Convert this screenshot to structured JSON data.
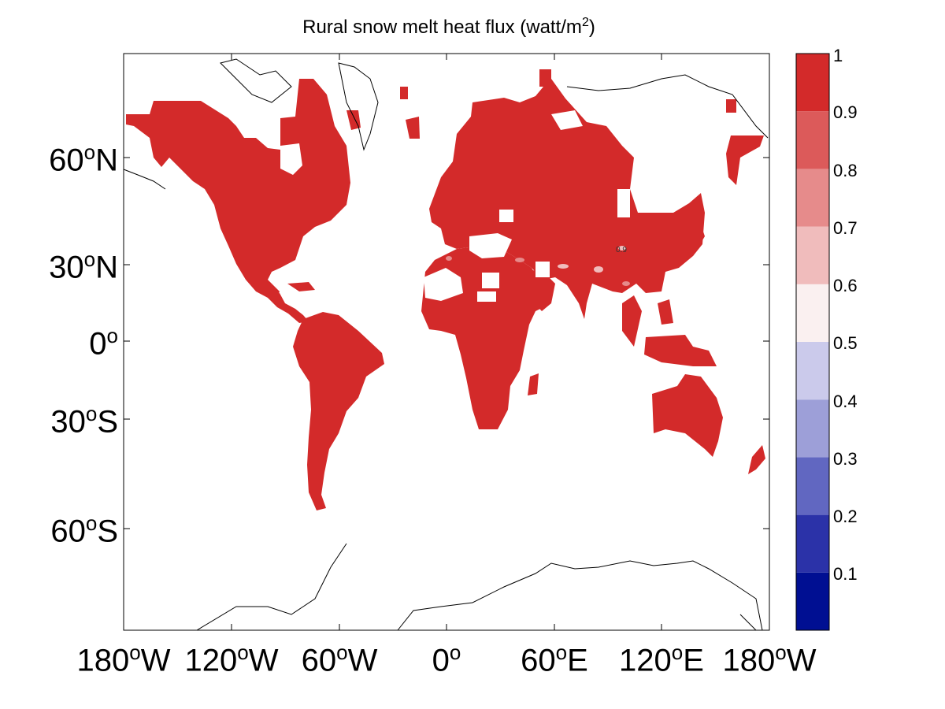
{
  "title": {
    "prefix": "Rural snow melt heat flux (watt/m",
    "superscript": "2",
    "suffix": ")"
  },
  "y_ticks": [
    {
      "value": "60",
      "sup": "o",
      "hemi": "N"
    },
    {
      "value": "30",
      "sup": "o",
      "hemi": "N"
    },
    {
      "value": "0",
      "sup": "o",
      "hemi": ""
    },
    {
      "value": "30",
      "sup": "o",
      "hemi": "S"
    },
    {
      "value": "60",
      "sup": "o",
      "hemi": "S"
    }
  ],
  "x_ticks": [
    {
      "value": "180",
      "sup": "o",
      "hemi": "W"
    },
    {
      "value": "120",
      "sup": "o",
      "hemi": "W"
    },
    {
      "value": "60",
      "sup": "o",
      "hemi": "W"
    },
    {
      "value": "0",
      "sup": "o",
      "hemi": ""
    },
    {
      "value": "60",
      "sup": "o",
      "hemi": "E"
    },
    {
      "value": "120",
      "sup": "o",
      "hemi": "E"
    },
    {
      "value": "180",
      "sup": "o",
      "hemi": "W"
    }
  ],
  "colorbar": {
    "labels": [
      "1",
      "0.9",
      "0.8",
      "0.7",
      "0.6",
      "0.5",
      "0.4",
      "0.3",
      "0.2",
      "0.1"
    ],
    "colors": [
      "#000f92",
      "#2b32a8",
      "#6167c1",
      "#9d9fd8",
      "#cbcaeb",
      "#faf0f0",
      "#f0bcbc",
      "#e68b8b",
      "#dc5a5a",
      "#d32a2a"
    ]
  },
  "map": {
    "land_fill": "#d32a2a",
    "coast_color": "#000000",
    "contour_label": "0.9"
  }
}
